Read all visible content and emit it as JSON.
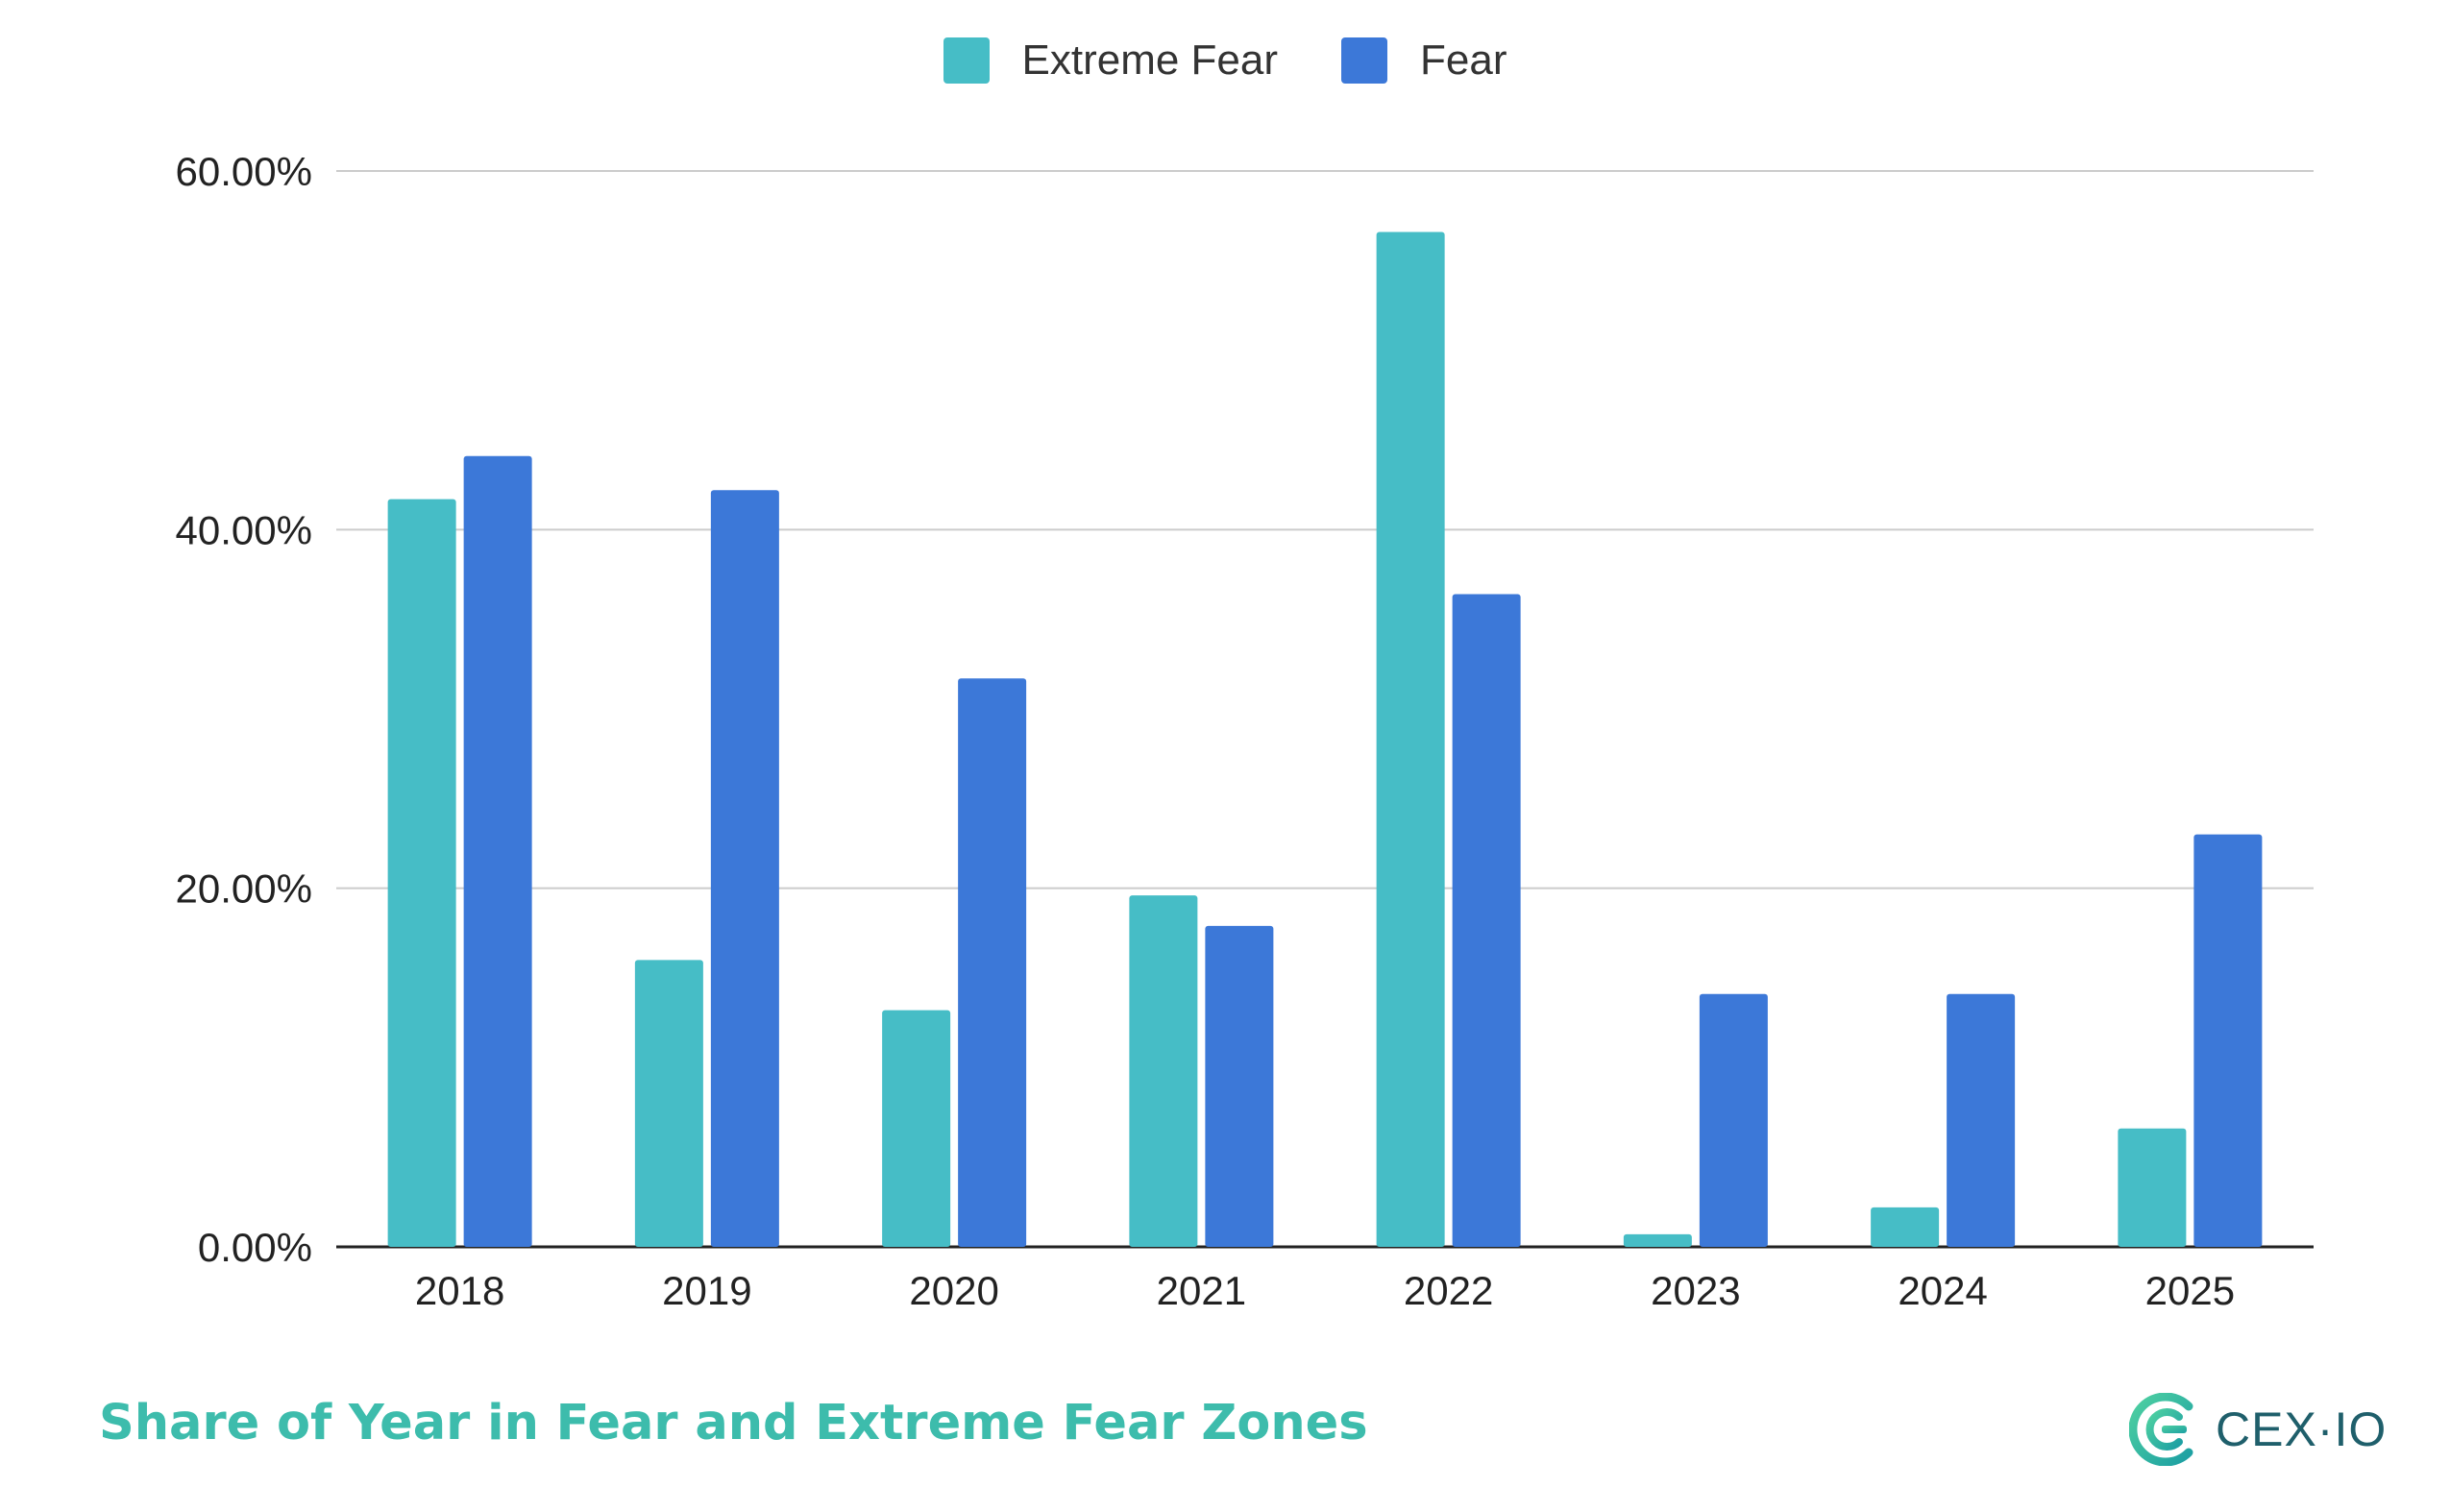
{
  "chart_data": {
    "type": "bar",
    "title": "Share of Year in Fear and Extreme Fear Zones",
    "categories": [
      "2018",
      "2019",
      "2020",
      "2021",
      "2022",
      "2023",
      "2024",
      "2025"
    ],
    "series": [
      {
        "name": "Extreme Fear",
        "color": "#46bdc6",
        "values": [
          41.7,
          16.0,
          13.2,
          19.6,
          56.6,
          0.7,
          2.2,
          6.6
        ]
      },
      {
        "name": "Fear",
        "color": "#3c78d8",
        "values": [
          44.1,
          42.2,
          31.7,
          17.9,
          36.4,
          14.1,
          14.1,
          23.0
        ]
      }
    ],
    "ylim": [
      0,
      60
    ],
    "yticks": [
      0,
      20,
      40,
      60
    ],
    "ytick_labels": [
      "0.00%",
      "20.00%",
      "40.00%",
      "60.00%"
    ],
    "grid": true,
    "legend_position": "top-center",
    "xlabel": "",
    "ylabel": ""
  },
  "brand": {
    "name": "CEX·IO",
    "logo_icon": "cex-logo-icon",
    "color": "#1f5f6b"
  },
  "title_color": "#3dbcac"
}
